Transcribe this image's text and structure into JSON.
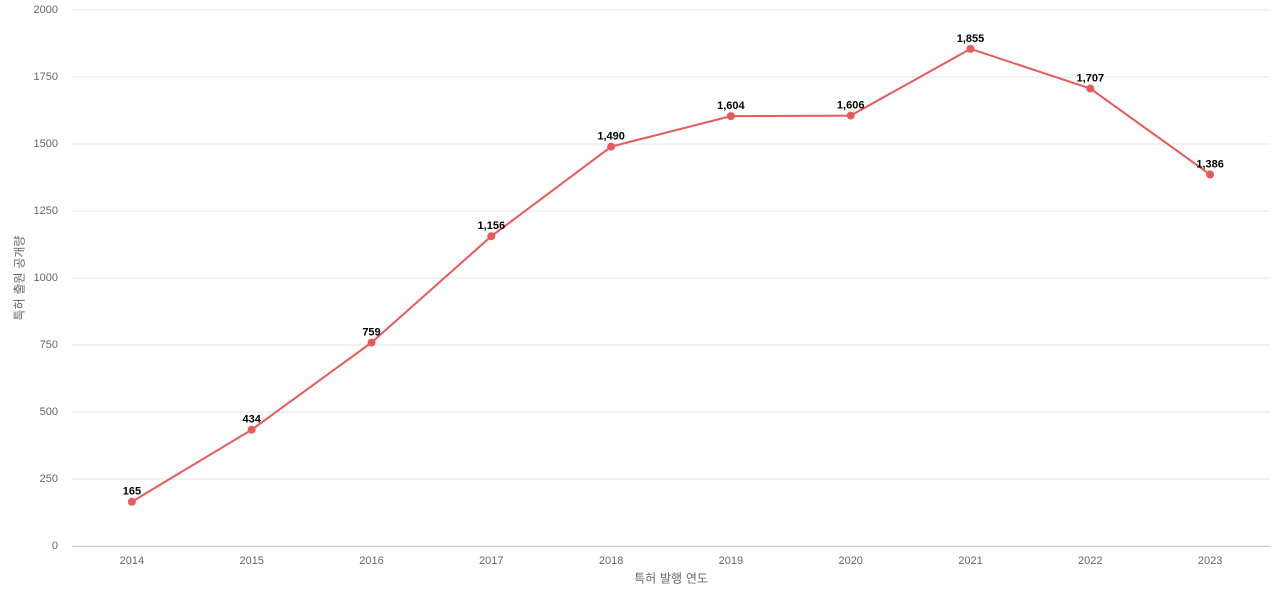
{
  "chart_data": {
    "type": "line",
    "x_label": "특허 발행 연도",
    "y_label": "특허 출원 공개량",
    "categories": [
      "2014",
      "2015",
      "2016",
      "2017",
      "2018",
      "2019",
      "2020",
      "2021",
      "2022",
      "2023"
    ],
    "values": [
      165,
      434,
      759,
      1156,
      1490,
      1604,
      1606,
      1855,
      1707,
      1386
    ],
    "value_labels": [
      "165",
      "434",
      "759",
      "1,156",
      "1,490",
      "1,604",
      "1,606",
      "1,855",
      "1,707",
      "1,386"
    ],
    "color": "#e85a5a",
    "ylim": [
      0,
      2000
    ],
    "yticks": [
      0,
      250,
      500,
      750,
      1000,
      1250,
      1500,
      1750,
      2000
    ],
    "grid": true
  }
}
